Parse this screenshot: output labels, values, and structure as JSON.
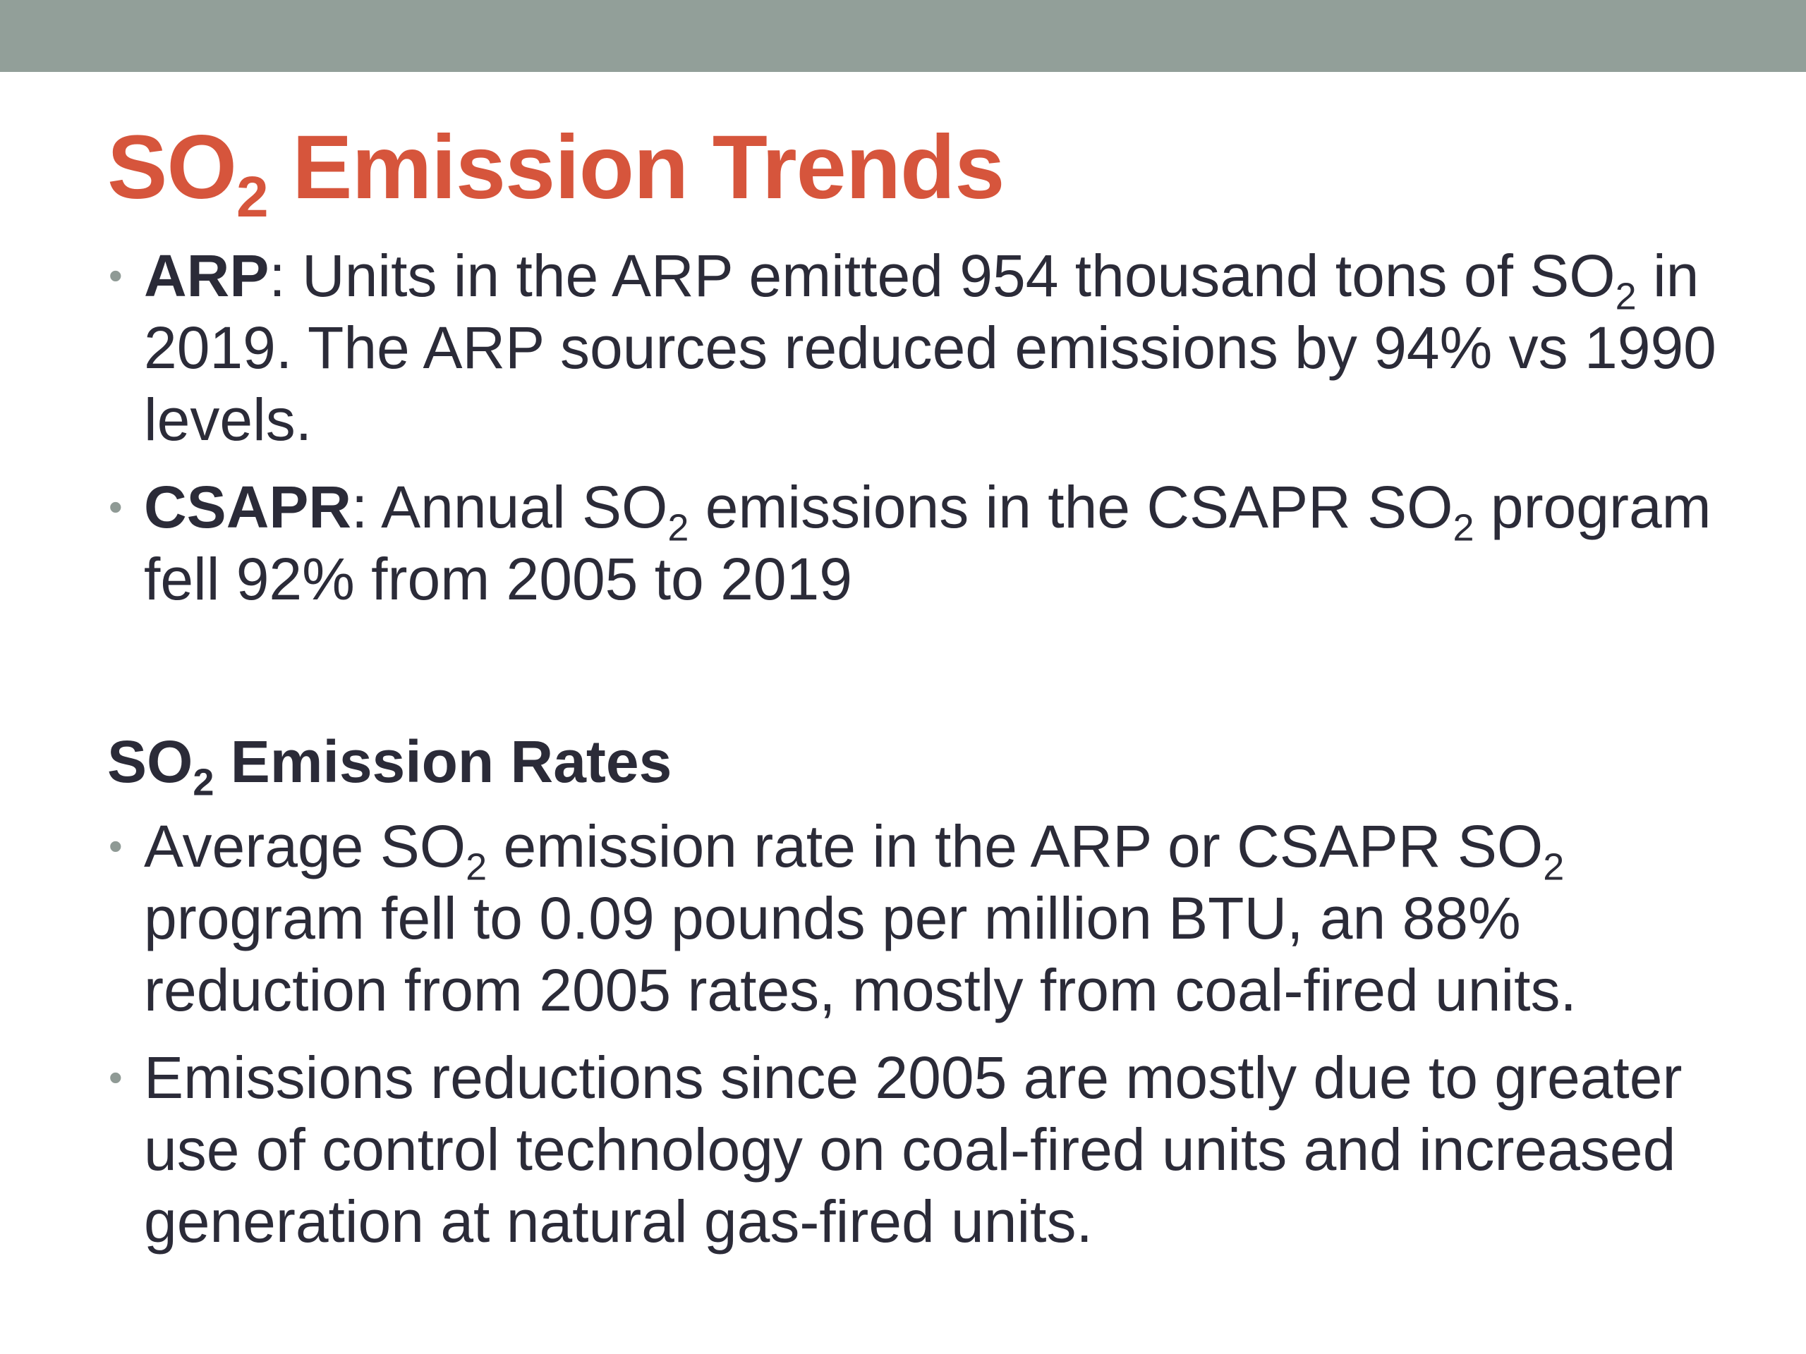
{
  "slide": {
    "title": {
      "prefix": "SO",
      "subscript": "2",
      "suffix": " Emission Trends"
    },
    "section1": {
      "bullets": [
        {
          "label": "ARP",
          "t1": ": Units in the ARP emitted 954 thousand tons of SO",
          "s1": "2",
          "t2": " in 2019. The ARP sources reduced emissions by 94% vs 1990 levels."
        },
        {
          "label": "CSAPR",
          "t1": ": Annual SO",
          "s1": "2",
          "t2": " emissions in the CSAPR SO",
          "s2": "2",
          "t3": " program fell 92% from 2005 to 2019"
        }
      ]
    },
    "section2": {
      "heading": {
        "prefix": "SO",
        "subscript": "2",
        "suffix": " Emission Rates"
      },
      "bullets": [
        {
          "t1": "Average SO",
          "s1": "2",
          "t2": " emission rate in the ARP or CSAPR SO",
          "s2": "2",
          "t3": " program fell to 0.09 pounds per million BTU, an 88% reduction from 2005 rates, mostly from coal-fired units."
        },
        {
          "t1": "Emissions reductions since 2005 are mostly due to greater use of control technology on coal-fired units and increased generation at natural gas-fired units."
        }
      ]
    },
    "bullet_glyph": "•"
  },
  "colors": {
    "title": "#d6553c",
    "top_band": "#929f99",
    "body_text": "#2b2b38",
    "bullet": "#8f9a95",
    "background": "#ffffff"
  }
}
